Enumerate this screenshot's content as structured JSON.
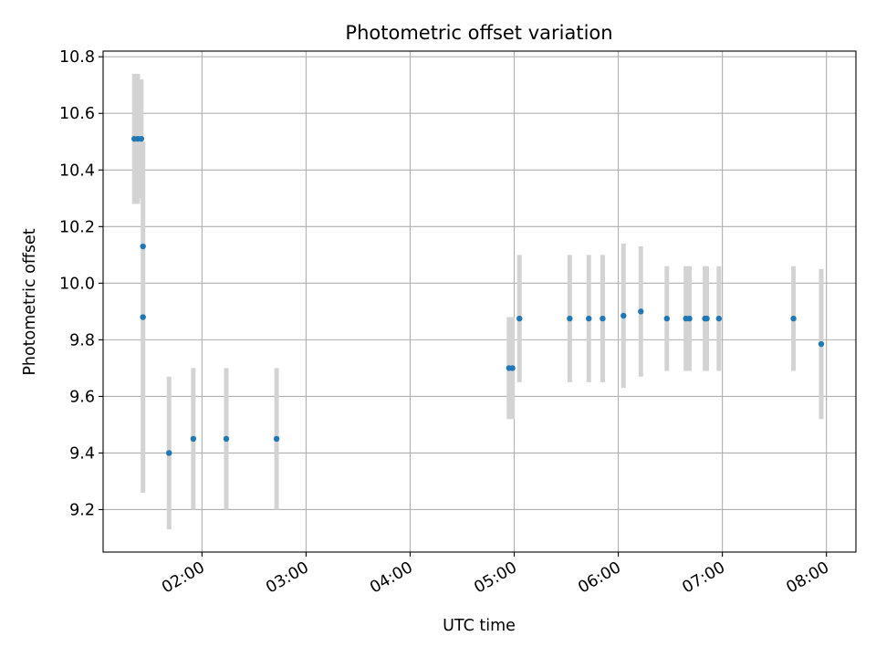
{
  "chart_data": {
    "type": "scatter",
    "title": "Photometric offset variation",
    "xlabel": "UTC time",
    "ylabel": "Photometric offset",
    "grid": true,
    "xlim": [
      "01:03",
      "08:17"
    ],
    "ylim": [
      9.05,
      10.82
    ],
    "x_ticks": [
      "02:00",
      "03:00",
      "04:00",
      "05:00",
      "06:00",
      "07:00",
      "08:00"
    ],
    "y_ticks": [
      9.2,
      9.4,
      9.6,
      9.8,
      10.0,
      10.2,
      10.4,
      10.6,
      10.8
    ],
    "y_tick_labels": [
      "9.2",
      "9.4",
      "9.6",
      "9.8",
      "10.0",
      "10.2",
      "10.4",
      "10.6",
      "10.8"
    ],
    "colors": {
      "marker": "#1f77b4",
      "errorbar": "#d3d3d3"
    },
    "series": [
      {
        "points": [
          {
            "x": "01:21",
            "y": 10.51,
            "yerr": 0.23
          },
          {
            "x": "01:23",
            "y": 10.51,
            "yerr": 0.23
          },
          {
            "x": "01:25",
            "y": 10.51,
            "yerr": 0.21
          },
          {
            "x": "01:26",
            "y": 10.13,
            "yerr": 0.0
          },
          {
            "x": "01:26",
            "y": 9.88,
            "yerr": 0.62
          },
          {
            "x": "01:41",
            "y": 9.4,
            "yerr": 0.27
          },
          {
            "x": "01:55",
            "y": 9.45,
            "yerr": 0.25
          },
          {
            "x": "02:14",
            "y": 9.45,
            "yerr": 0.25
          },
          {
            "x": "02:43",
            "y": 9.45,
            "yerr": 0.25
          },
          {
            "x": "04:57",
            "y": 9.7,
            "yerr": 0.18
          },
          {
            "x": "04:59",
            "y": 9.7,
            "yerr": 0.18
          },
          {
            "x": "05:03",
            "y": 9.875,
            "yerr": 0.225
          },
          {
            "x": "05:32",
            "y": 9.875,
            "yerr": 0.225
          },
          {
            "x": "05:43",
            "y": 9.875,
            "yerr": 0.225
          },
          {
            "x": "05:51",
            "y": 9.875,
            "yerr": 0.225
          },
          {
            "x": "06:03",
            "y": 9.885,
            "yerr": 0.255
          },
          {
            "x": "06:13",
            "y": 9.9,
            "yerr": 0.23
          },
          {
            "x": "06:28",
            "y": 9.875,
            "yerr": 0.185
          },
          {
            "x": "06:39",
            "y": 9.875,
            "yerr": 0.185
          },
          {
            "x": "06:41",
            "y": 9.875,
            "yerr": 0.185
          },
          {
            "x": "06:50",
            "y": 9.875,
            "yerr": 0.185
          },
          {
            "x": "06:51",
            "y": 9.875,
            "yerr": 0.185
          },
          {
            "x": "06:58",
            "y": 9.875,
            "yerr": 0.185
          },
          {
            "x": "07:41",
            "y": 9.875,
            "yerr": 0.185
          },
          {
            "x": "07:57",
            "y": 9.785,
            "yerr": 0.265
          }
        ]
      }
    ]
  }
}
